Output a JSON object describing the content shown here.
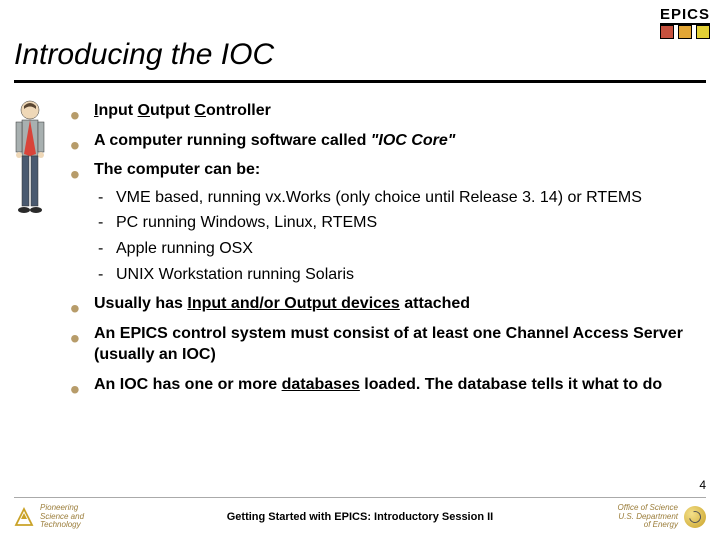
{
  "header": {
    "logo_text": "EPICS",
    "box_colors": [
      "#c5513e",
      "#e3a635",
      "#e3d035"
    ]
  },
  "title": "Introducing the IOC",
  "bullets": [
    {
      "html": "<span class='underline'>I</span>nput <span class='underline'>O</span>utput <span class='underline'>C</span>ontroller"
    },
    {
      "html": "A computer running software called <span class='italic'>\"IOC Core\"</span>"
    },
    {
      "html": "The computer can be:",
      "sub": [
        "VME based, running vx.Works (only choice until Release 3. 14) or RTEMS",
        "PC running Windows, Linux, RTEMS",
        "Apple running OSX",
        "UNIX Workstation running Solaris"
      ]
    },
    {
      "html": "Usually has <span class='underline'>Input and/or Output devices</span> attached"
    },
    {
      "html": "An EPICS control system must consist of at least one Channel Access Server (usually an IOC)"
    },
    {
      "html": "An IOC has one or more <span class='underline'>databases</span> loaded. The database tells it what to do"
    }
  ],
  "page_number": "4",
  "footer": {
    "left_text": "Pioneering\nScience and\nTechnology",
    "center_text": "Getting Started with EPICS: Introductory Session II",
    "right_text": "Office of Science\nU.S. Department\nof Energy"
  },
  "colors": {
    "bullet_accent": "#b79c6a",
    "footer_text": "#9b7d3a",
    "title_underline": "#000000"
  }
}
